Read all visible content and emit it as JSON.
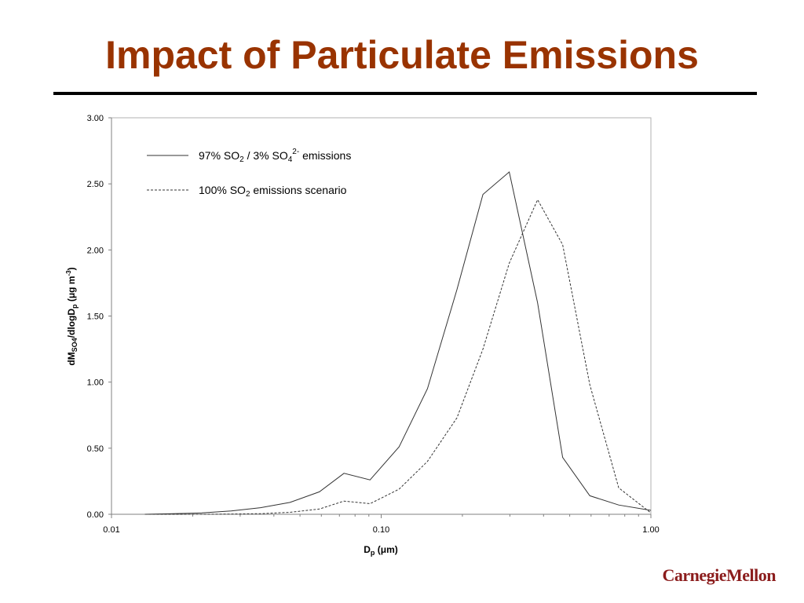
{
  "slide": {
    "title": "Impact of Particulate Emissions",
    "logo_text": "CarnegieMellon",
    "title_color": "#993300",
    "logo_color": "#8b1c1c"
  },
  "chart_data": {
    "type": "line",
    "xscale": "log",
    "xlim": [
      0.01,
      1.0
    ],
    "ylim": [
      0,
      3.0
    ],
    "xticks": [
      "0.01",
      "0.10",
      "1.00"
    ],
    "yticks": [
      "0.00",
      "0.50",
      "1.00",
      "1.50",
      "2.00",
      "2.50",
      "3.00"
    ],
    "xlabel": {
      "main": "D",
      "sub": "p",
      "rest": " (",
      "greek": "μ",
      "end": "m)"
    },
    "ylabel": {
      "a": "dM",
      "sub1": "SO4",
      "b": "/dlogD",
      "sub2": "p",
      "c": " (",
      "greek": "μ",
      "d": "g m",
      "sup": "-3",
      "e": ")"
    },
    "grid": false,
    "legend_position": "top-left",
    "series": [
      {
        "name": "97% SO2 / 3% SO4 2- emissions",
        "label_parts": {
          "a": "97% SO",
          "sub1": "2",
          "b": " / 3% SO",
          "sub2": "4",
          "sup": "2-",
          "c": " emissions"
        },
        "style": "solid",
        "x": [
          0.0133,
          0.0168,
          0.0216,
          0.0278,
          0.0357,
          0.0459,
          0.059,
          0.0728,
          0.0909,
          0.1165,
          0.1484,
          0.1909,
          0.2384,
          0.2985,
          0.3802,
          0.4707,
          0.5935,
          0.7596,
          1.0
        ],
        "y": [
          0.0,
          0.005,
          0.01,
          0.025,
          0.05,
          0.09,
          0.17,
          0.31,
          0.26,
          0.51,
          0.95,
          1.7,
          2.42,
          2.59,
          1.6,
          0.43,
          0.14,
          0.07,
          0.03
        ]
      },
      {
        "name": "100% SO2 emissions scenario",
        "label_parts": {
          "a": "100% SO",
          "sub1": "2",
          "b": " emissions scenario"
        },
        "style": "dashed",
        "x": [
          0.0133,
          0.0168,
          0.0216,
          0.0278,
          0.0357,
          0.0459,
          0.059,
          0.0728,
          0.0909,
          0.1165,
          0.1484,
          0.1909,
          0.2384,
          0.2985,
          0.3802,
          0.4707,
          0.5935,
          0.7596,
          1.0
        ],
        "y": [
          0.0,
          0.0,
          0.0,
          0.002,
          0.005,
          0.015,
          0.04,
          0.1,
          0.08,
          0.19,
          0.4,
          0.73,
          1.25,
          1.9,
          2.38,
          2.04,
          0.98,
          0.2,
          0.01
        ]
      }
    ]
  }
}
